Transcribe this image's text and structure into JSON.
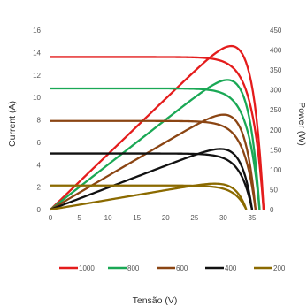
{
  "chart_data": {
    "type": "line",
    "title": "",
    "xlabel": "Tensão (V)",
    "ylabel_left": "Current (A)",
    "ylabel_right": "Power (W)",
    "xlim": [
      0,
      37
    ],
    "ylim_left": [
      0,
      16
    ],
    "ylim_right": [
      0,
      450
    ],
    "x_ticks": [
      "0",
      "5",
      "10",
      "15",
      "20",
      "25",
      "30",
      "35"
    ],
    "y_left_ticks": [
      "0",
      "2",
      "4",
      "6",
      "8",
      "10",
      "12",
      "14",
      "16"
    ],
    "y_right_ticks": [
      "0",
      "50",
      "100",
      "150",
      "200",
      "250",
      "300",
      "350",
      "400",
      "450"
    ],
    "grid": false,
    "legend_position": "bottom",
    "series": [
      {
        "name": "1000",
        "color": "#e41c1c",
        "isc": 13.6,
        "voc": 37.0,
        "pmax": 410,
        "vmp": 30.5
      },
      {
        "name": "800",
        "color": "#1aa855",
        "isc": 10.8,
        "voc": 36.3,
        "pmax": 325,
        "vmp": 30.0
      },
      {
        "name": "600",
        "color": "#8b4513",
        "isc": 7.9,
        "voc": 35.6,
        "pmax": 238,
        "vmp": 29.5
      },
      {
        "name": "400",
        "color": "#111111",
        "isc": 5.0,
        "voc": 35.0,
        "pmax": 152,
        "vmp": 29.0
      },
      {
        "name": "200",
        "color": "#8b6a00",
        "isc": 2.15,
        "voc": 34.0,
        "pmax": 65,
        "vmp": 28.5
      }
    ]
  }
}
